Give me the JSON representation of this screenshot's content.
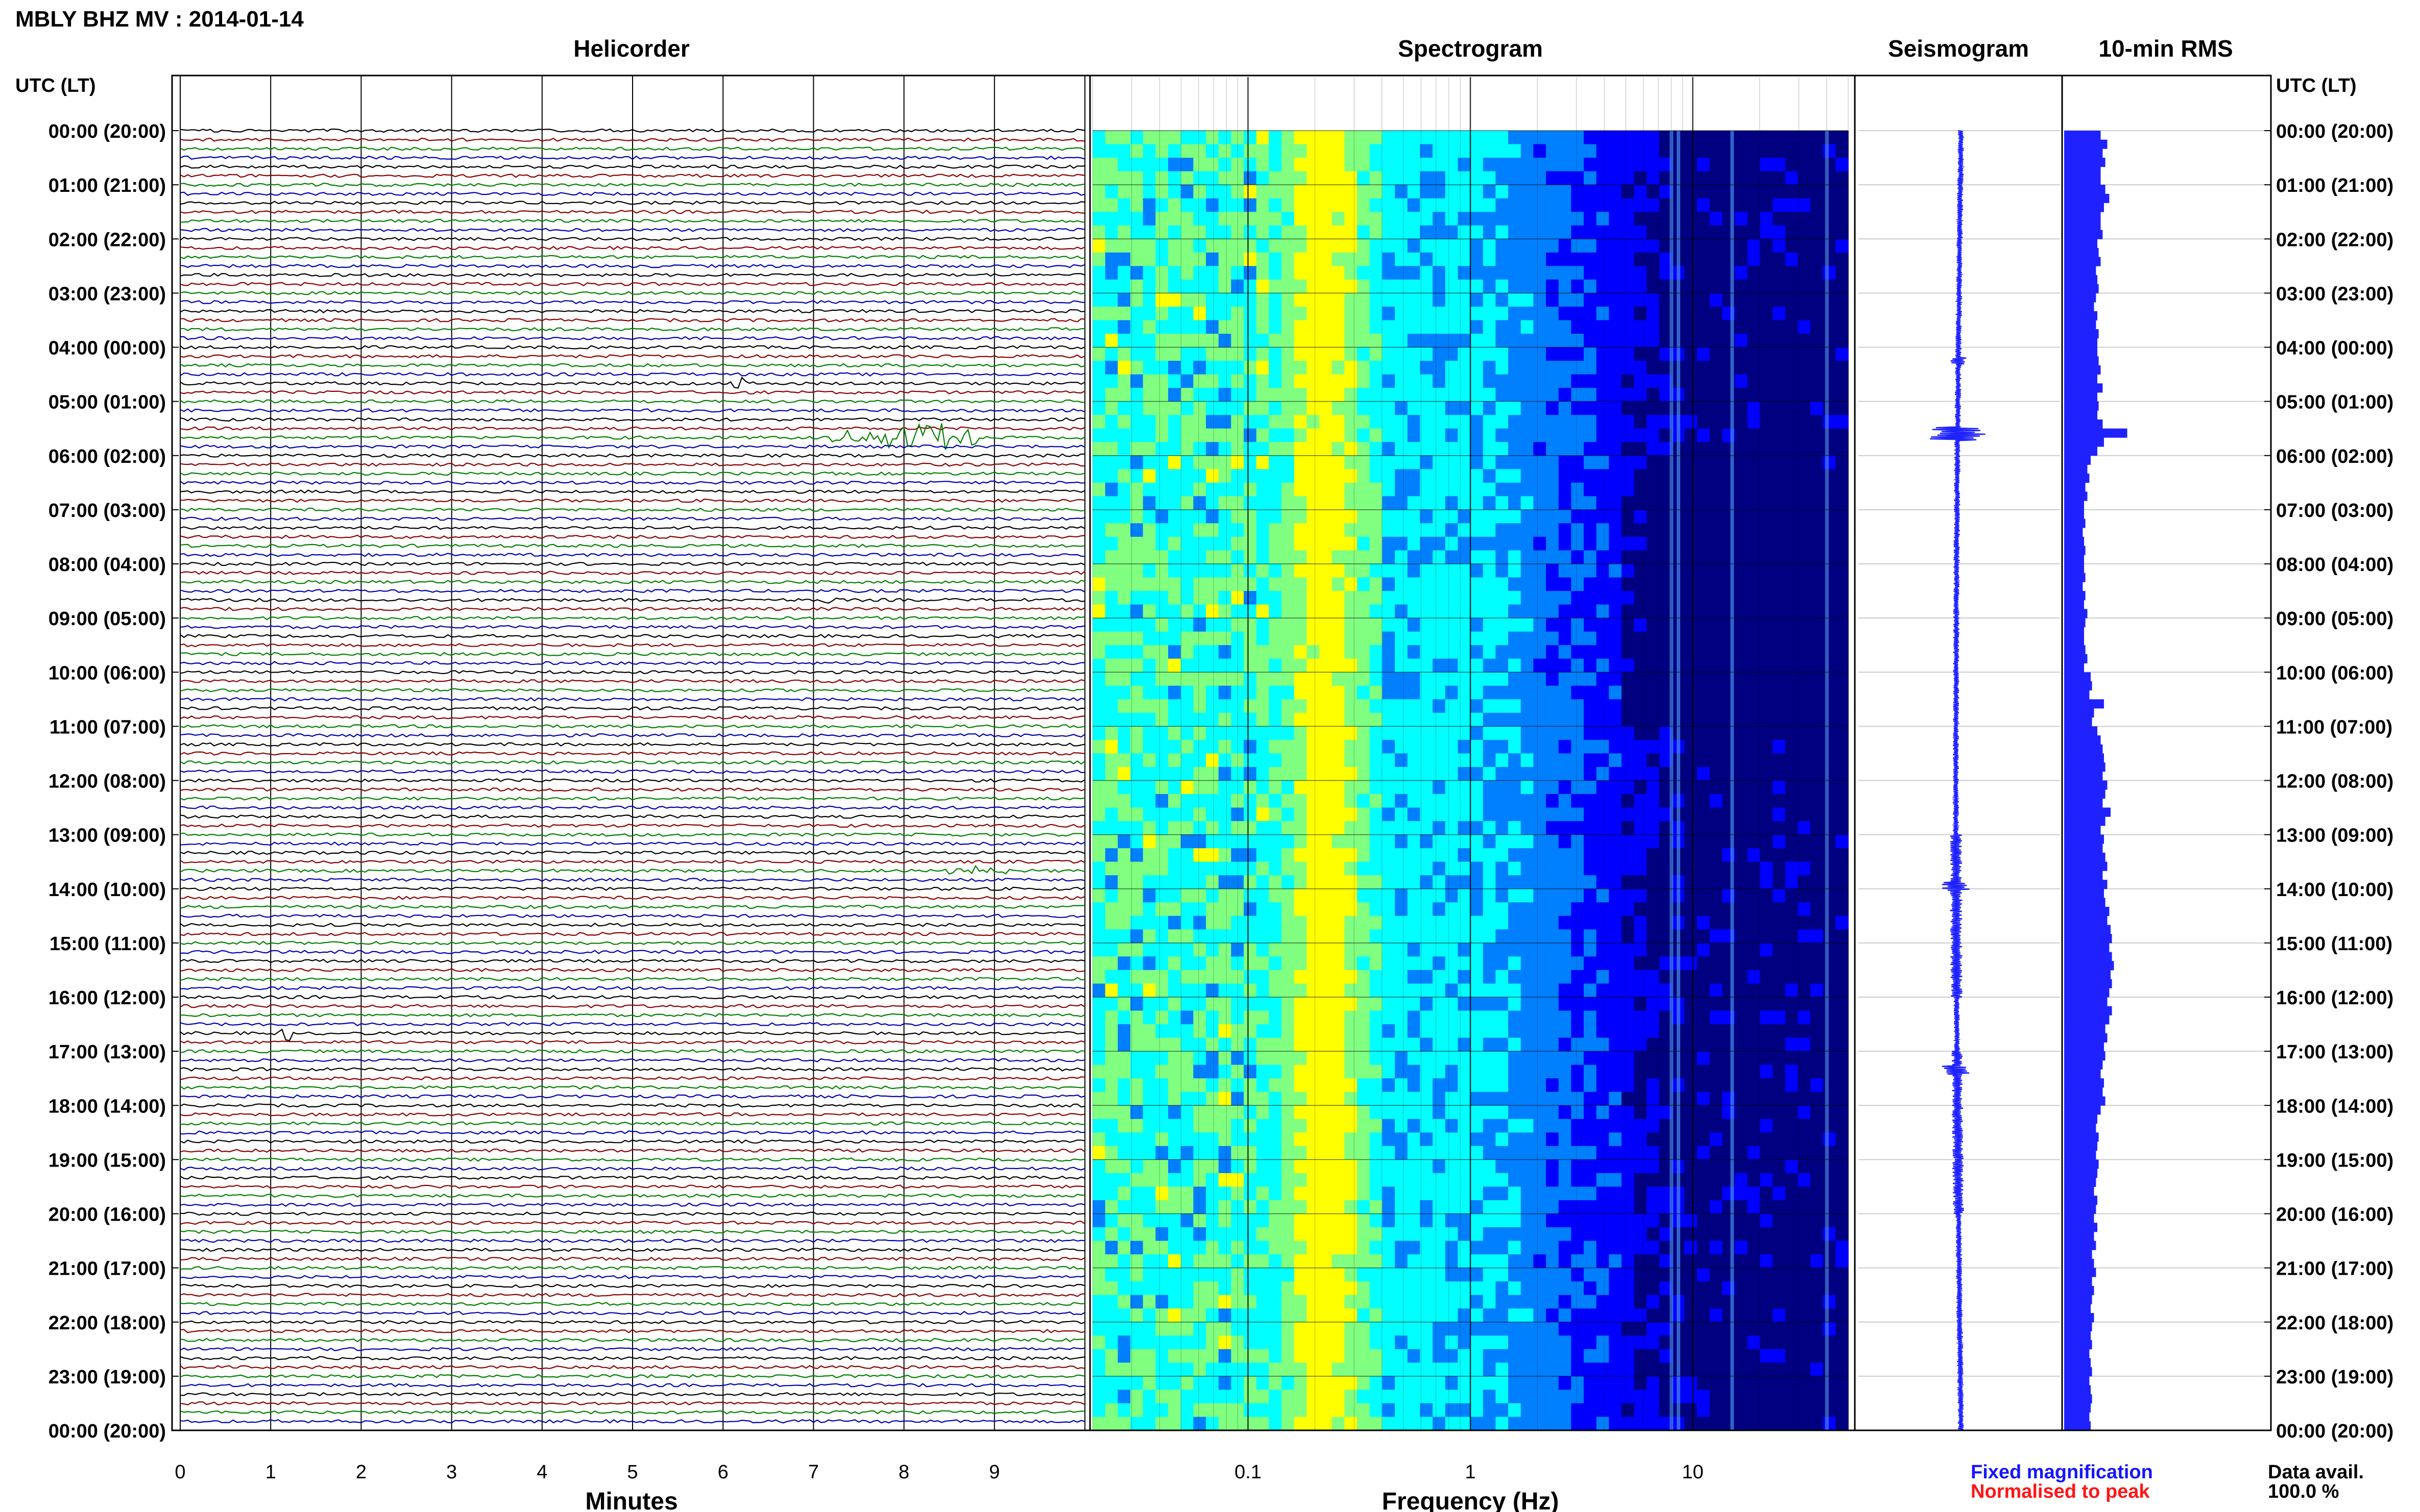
{
  "page": {
    "title": "MBLY BHZ MV : 2014-01-14",
    "data_avail_label": "Data avail.",
    "data_avail_value": "100.0 %",
    "legend_fixed": "Fixed magnification",
    "legend_normalised": "Normalised to peak"
  },
  "colors": {
    "trace_cycle": [
      "#000000",
      "#8b0000",
      "#008000",
      "#0000b4"
    ],
    "seismogram": "#1f22ff",
    "rms_bar": "#1f22ff",
    "legend_fixed": "#1515ff",
    "legend_normalised": "#ff1515"
  },
  "chart_data": [
    {
      "type": "line",
      "title": "Helicorder",
      "xlabel": "Minutes",
      "xlim": [
        0,
        10
      ],
      "x_ticks": [
        "0",
        "1",
        "2",
        "3",
        "4",
        "5",
        "6",
        "7",
        "8",
        "9"
      ],
      "y_axis_label": "UTC (LT)",
      "y_ticks": [
        "00:00 (20:00)",
        "01:00 (21:00)",
        "02:00 (22:00)",
        "03:00 (23:00)",
        "04:00 (00:00)",
        "05:00 (01:00)",
        "06:00 (02:00)",
        "07:00 (03:00)",
        "08:00 (04:00)",
        "09:00 (05:00)",
        "10:00 (06:00)",
        "11:00 (07:00)",
        "12:00 (08:00)",
        "13:00 (09:00)",
        "14:00 (10:00)",
        "15:00 (11:00)",
        "16:00 (12:00)",
        "17:00 (13:00)",
        "18:00 (14:00)",
        "19:00 (15:00)",
        "20:00 (16:00)",
        "21:00 (17:00)",
        "22:00 (18:00)",
        "23:00 (19:00)",
        "00:00 (20:00)"
      ],
      "lines_per_hour": 6,
      "line_count": 144,
      "trace_amplitude_noise": "constant",
      "grid": true,
      "events": [
        {
          "hour_row": 5,
          "minute_start": 7.2,
          "minute_end": 8.8,
          "peak_minute": 8.3,
          "strength": "strong"
        },
        {
          "hour_row": 4,
          "minute_start": 6.1,
          "minute_end": 6.25,
          "peak_minute": 6.15,
          "strength": "moderate"
        },
        {
          "hour_row": 8,
          "minute_start": 7.1,
          "minute_end": 7.25,
          "peak_minute": 7.15,
          "strength": "weak"
        },
        {
          "hour_row": 16,
          "minute_start": 1.1,
          "minute_end": 1.3,
          "peak_minute": 1.2,
          "strength": "moderate"
        },
        {
          "hour_row": 13,
          "minute_start": 8.5,
          "minute_end": 9.2,
          "peak_minute": 8.8,
          "strength": "weak"
        }
      ]
    },
    {
      "type": "heatmap",
      "title": "Spectrogram",
      "xlabel": "Frequency (Hz)",
      "x_scale": "log",
      "xlim": [
        0.02,
        50
      ],
      "x_ticks": [
        {
          "value": 0.1,
          "label": "0.1"
        },
        {
          "value": 1,
          "label": "1"
        },
        {
          "value": 10,
          "label": "10"
        }
      ],
      "y_ticks_shared": "UTC (LT)",
      "colormap": [
        "#000080",
        "#0000ff",
        "#0080ff",
        "#00ffff",
        "#80ff80",
        "#ffff00"
      ],
      "features": {
        "microseism_peak_hz": 0.22,
        "persistent_lines_hz": [
          8,
          8.6,
          15,
          40
        ],
        "high_energy_band_hz": [
          0.02,
          0.13
        ],
        "quiet_band_hz": [
          5,
          40
        ],
        "quiet_hours": [
          6,
          11
        ]
      }
    },
    {
      "type": "line",
      "title": "Seismogram",
      "grid": true,
      "annotations": [
        "event near 05:40 (01:40)",
        "event near 04:15",
        "event near 14:00",
        "event near 17:20"
      ]
    },
    {
      "type": "bar",
      "title": "10-min RMS",
      "orientation": "horizontal",
      "y_axis_label": "UTC (LT)",
      "y_ticks": [
        "00:00 (20:00)",
        "01:00 (21:00)",
        "02:00 (22:00)",
        "03:00 (23:00)",
        "04:00 (00:00)",
        "05:00 (01:00)",
        "06:00 (02:00)",
        "07:00 (03:00)",
        "08:00 (04:00)",
        "09:00 (05:00)",
        "10:00 (06:00)",
        "11:00 (07:00)",
        "12:00 (08:00)",
        "13:00 (09:00)",
        "14:00 (10:00)",
        "15:00 (11:00)",
        "16:00 (12:00)",
        "17:00 (13:00)",
        "18:00 (14:00)",
        "19:00 (15:00)",
        "20:00 (16:00)",
        "21:00 (17:00)",
        "22:00 (18:00)",
        "23:00 (19:00)",
        "00:00 (20:00)"
      ],
      "xlim": [
        0,
        1
      ],
      "values": [
        0.55,
        0.65,
        0.58,
        0.62,
        0.55,
        0.55,
        0.62,
        0.68,
        0.6,
        0.55,
        0.55,
        0.58,
        0.5,
        0.52,
        0.55,
        0.48,
        0.5,
        0.52,
        0.48,
        0.45,
        0.5,
        0.48,
        0.52,
        0.5,
        0.5,
        0.52,
        0.55,
        0.5,
        0.58,
        0.5,
        0.52,
        0.5,
        0.58,
        0.95,
        0.6,
        0.5,
        0.4,
        0.35,
        0.38,
        0.32,
        0.35,
        0.3,
        0.3,
        0.32,
        0.28,
        0.3,
        0.32,
        0.3,
        0.3,
        0.32,
        0.28,
        0.32,
        0.3,
        0.35,
        0.32,
        0.3,
        0.3,
        0.32,
        0.35,
        0.3,
        0.4,
        0.42,
        0.38,
        0.6,
        0.45,
        0.42,
        0.5,
        0.55,
        0.58,
        0.6,
        0.62,
        0.58,
        0.65,
        0.62,
        0.58,
        0.7,
        0.62,
        0.55,
        0.6,
        0.58,
        0.62,
        0.65,
        0.58,
        0.65,
        0.6,
        0.62,
        0.68,
        0.65,
        0.7,
        0.72,
        0.68,
        0.72,
        0.75,
        0.7,
        0.72,
        0.68,
        0.65,
        0.72,
        0.68,
        0.62,
        0.65,
        0.6,
        0.62,
        0.58,
        0.55,
        0.6,
        0.58,
        0.62,
        0.55,
        0.5,
        0.48,
        0.52,
        0.5,
        0.48,
        0.52,
        0.5,
        0.48,
        0.45,
        0.5,
        0.48,
        0.45,
        0.5,
        0.45,
        0.48,
        0.42,
        0.45,
        0.48,
        0.42,
        0.45,
        0.42,
        0.4,
        0.45,
        0.42,
        0.4,
        0.42,
        0.38,
        0.4,
        0.42,
        0.38,
        0.4,
        0.42,
        0.4,
        0.38,
        0.4
      ]
    }
  ]
}
